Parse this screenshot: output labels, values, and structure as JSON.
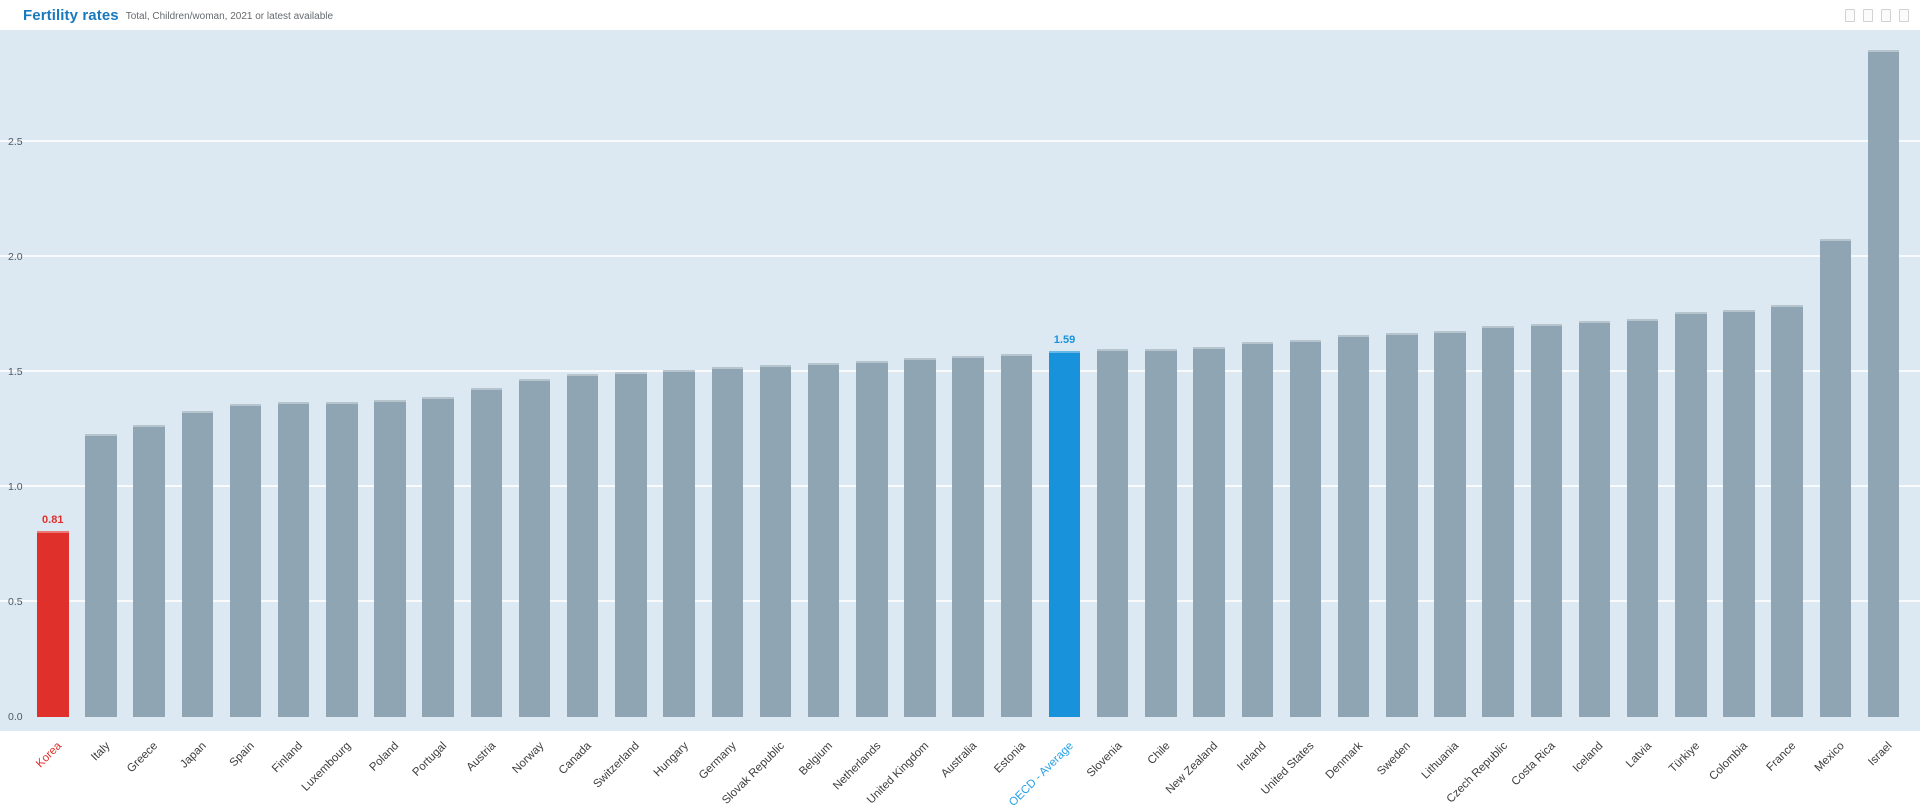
{
  "header": {
    "title": "Fertility rates",
    "subtitle": "Total, Children/woman, 2021 or latest available",
    "toolbar_icons": [
      "placeholder-box-icon",
      "placeholder-box-icon",
      "placeholder-box-icon",
      "placeholder-box-icon"
    ]
  },
  "chart_data": {
    "type": "bar",
    "title": "Fertility rates",
    "subtitle": "Total, Children/woman, 2021 or latest available",
    "unit": "children/woman",
    "categories": [
      "Korea",
      "Italy",
      "Greece",
      "Japan",
      "Spain",
      "Finland",
      "Luxembourg",
      "Poland",
      "Portugal",
      "Austria",
      "Norway",
      "Canada",
      "Switzerland",
      "Hungary",
      "Germany",
      "Slovak Republic",
      "Belgium",
      "Netherlands",
      "United Kingdom",
      "Australia",
      "Estonia",
      "OECD - Average",
      "Slovenia",
      "Chile",
      "New Zealand",
      "Ireland",
      "United States",
      "Denmark",
      "Sweden",
      "Lithuania",
      "Czech Republic",
      "Costa Rica",
      "Iceland",
      "Latvia",
      "Türkiye",
      "Colombia",
      "France",
      "Mexico",
      "Israel"
    ],
    "values": [
      0.81,
      1.23,
      1.27,
      1.33,
      1.36,
      1.37,
      1.37,
      1.38,
      1.39,
      1.43,
      1.47,
      1.49,
      1.5,
      1.51,
      1.52,
      1.53,
      1.54,
      1.55,
      1.56,
      1.57,
      1.58,
      1.59,
      1.6,
      1.6,
      1.61,
      1.63,
      1.64,
      1.66,
      1.67,
      1.68,
      1.7,
      1.71,
      1.72,
      1.73,
      1.76,
      1.77,
      1.79,
      2.08,
      2.9
    ],
    "ylim": [
      0,
      3.05
    ],
    "yticks": [
      "0.0",
      "0.5",
      "1.0",
      "1.5",
      "2.0",
      "2.5"
    ],
    "grid": "horizontal-white",
    "legend": "none",
    "bar_color": "#8FA5B3",
    "plot_background": "#DDE9F2",
    "default_label_color": "#3d3d3d",
    "highlights": [
      {
        "category": "Korea",
        "value_label": "0.81",
        "color": "#E0302C",
        "label_color": "#E0302C"
      },
      {
        "category": "OECD - Average",
        "value_label": "1.59",
        "color": "#1893DB",
        "label_color": "#27A0E5"
      }
    ]
  }
}
